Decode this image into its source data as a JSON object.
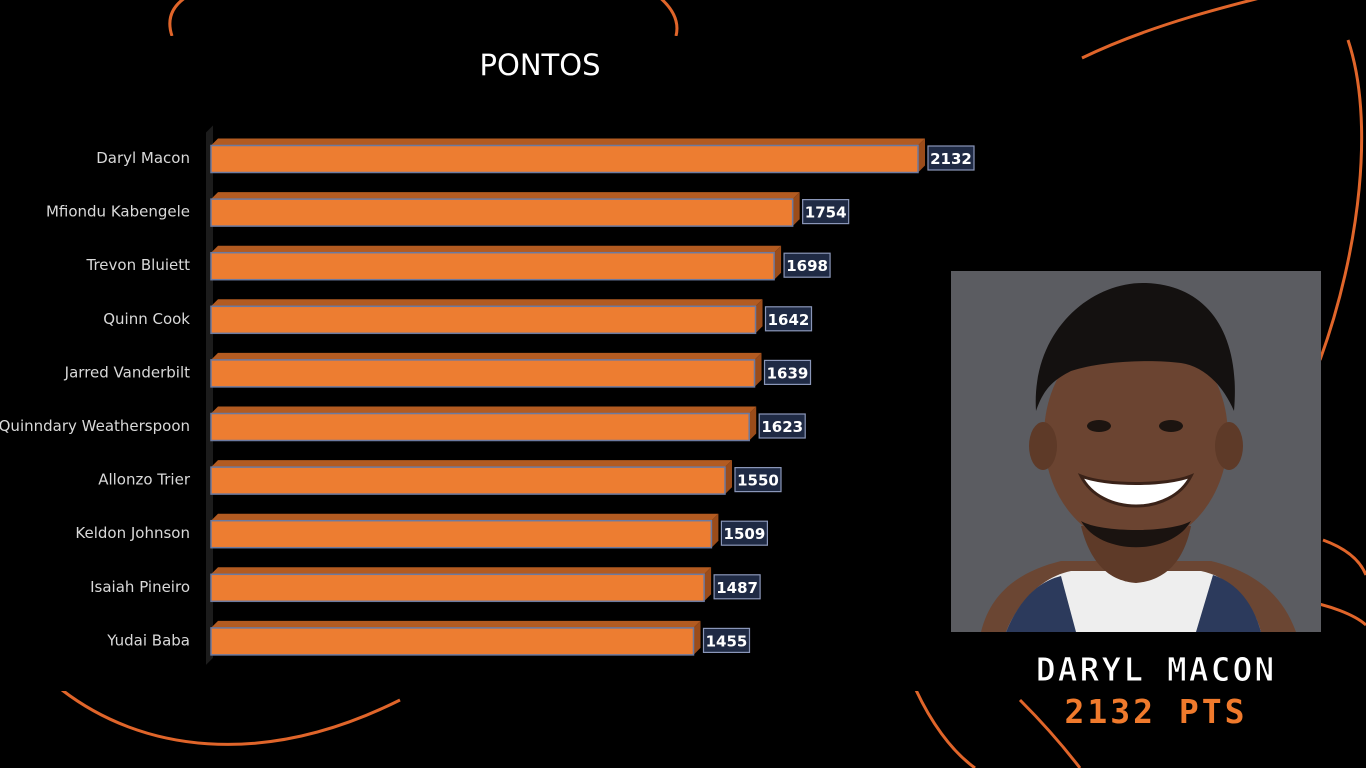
{
  "chart_data": {
    "type": "bar",
    "orientation": "horizontal",
    "title": "PONTOS",
    "categories": [
      "Daryl Macon",
      "Mfiondu Kabengele",
      "Trevon Bluiett",
      "Quinn Cook",
      "Jarred Vanderbilt",
      "Quinndary Weatherspoon",
      "Allonzo Trier",
      "Keldon Johnson",
      "Isaiah Pineiro",
      "Yudai Baba"
    ],
    "values": [
      2132,
      1754,
      1698,
      1642,
      1639,
      1623,
      1550,
      1509,
      1487,
      1455
    ],
    "bar_color": "#ed7d31",
    "label_box_color": "#1f2a44",
    "grid": false,
    "legend": "none"
  },
  "highlight": {
    "name": "DARYL MACON",
    "points": "2132 PTS"
  },
  "colors": {
    "background": "#000000",
    "accent": "#e0652a"
  }
}
